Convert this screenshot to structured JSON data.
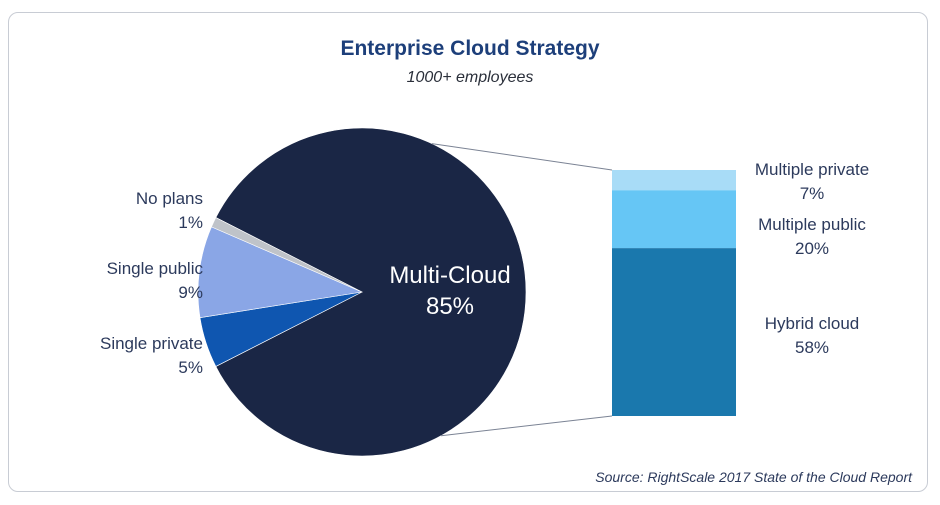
{
  "chart_data": {
    "type": "pie",
    "title": "Enterprise Cloud Strategy",
    "subtitle": "1000+ employees",
    "source": "Source: RightScale 2017 State of the Cloud Report",
    "slices": [
      {
        "name": "Multi-Cloud",
        "value": 85,
        "label": "85%",
        "color": "#1a2645"
      },
      {
        "name": "Single private",
        "value": 5,
        "label": "5%",
        "color": "#0f56b0"
      },
      {
        "name": "Single public",
        "value": 9,
        "label": "9%",
        "color": "#8aa6e6"
      },
      {
        "name": "No plans",
        "value": 1,
        "label": "1%",
        "color": "#bfc3c9"
      }
    ],
    "breakdown": {
      "of": "Multi-Cloud",
      "segments": [
        {
          "name": "Multiple private",
          "value": 7,
          "label": "7%",
          "color": "#a8dcf7"
        },
        {
          "name": "Multiple public",
          "value": 20,
          "label": "20%",
          "color": "#66c6f5"
        },
        {
          "name": "Hybrid cloud",
          "value": 58,
          "label": "58%",
          "color": "#1a78ad"
        }
      ]
    }
  }
}
